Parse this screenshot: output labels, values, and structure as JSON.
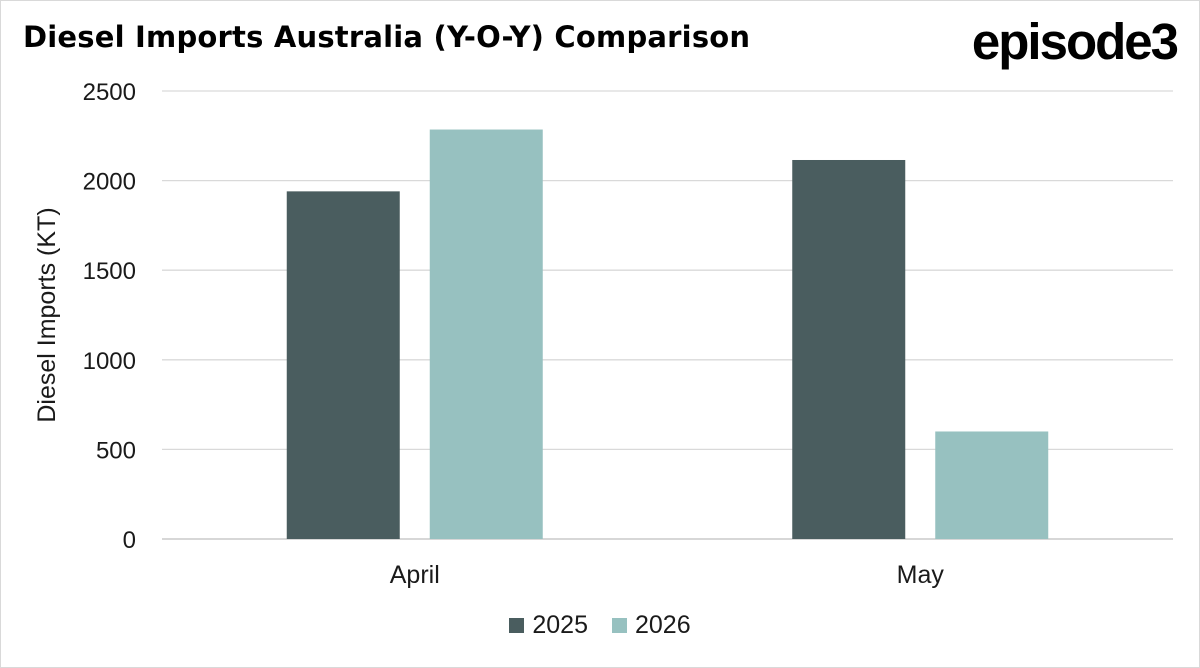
{
  "brand": {
    "logo_text": "episode3"
  },
  "chart_data": {
    "type": "bar",
    "title": "Diesel Imports Australia (Y-O-Y) Comparison",
    "xlabel": "",
    "ylabel": "Diesel Imports (KT)",
    "categories": [
      "April",
      "May"
    ],
    "series": [
      {
        "name": "2025",
        "color": "#4a5d5f",
        "values": [
          1940,
          2115
        ]
      },
      {
        "name": "2026",
        "color": "#97c1c0",
        "values": [
          2285,
          600
        ]
      }
    ],
    "ylim": [
      0,
      2500
    ],
    "yticks": [
      0,
      500,
      1000,
      1500,
      2000,
      2500
    ],
    "grid": true,
    "legend_position": "bottom"
  }
}
